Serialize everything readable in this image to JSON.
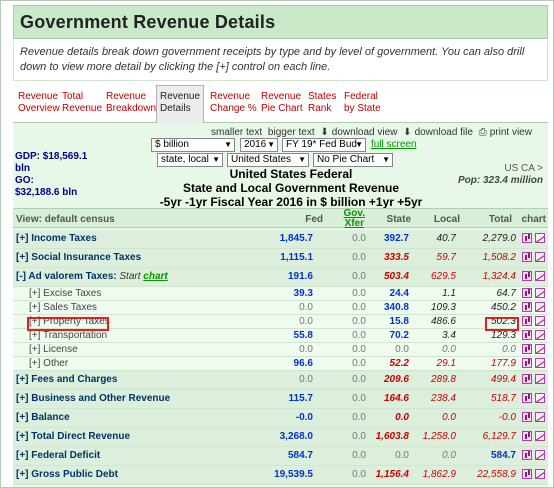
{
  "header": {
    "title": "Government Revenue Details"
  },
  "intro": {
    "text": "Revenue details break down government receipts by type and by level of government. You can also drill down to view more detail by clicking the [+] control on each line."
  },
  "tabs": [
    {
      "label1": "Revenue",
      "label2": "Overview"
    },
    {
      "label1": "Total",
      "label2": "Revenue"
    },
    {
      "label1": "Revenue",
      "label2": "Breakdown"
    },
    {
      "label1": "Revenue",
      "label2": "Details"
    },
    {
      "label1": "Revenue",
      "label2": "Change %"
    },
    {
      "label1": "Revenue",
      "label2": "Pie Chart"
    },
    {
      "label1": "States",
      "label2": "Rank"
    },
    {
      "label1": "Federal",
      "label2": "by State"
    }
  ],
  "toolbar": {
    "smaller_text": "smaller text",
    "bigger_text": "bigger text",
    "download_view": "download view",
    "download_file": "download file",
    "print_view": "print view",
    "full_screen": "full screen"
  },
  "selects": {
    "unit": "$ billion",
    "year": "2016",
    "budget": "FY 19* Fed Bud",
    "level": "state, local",
    "region": "United States",
    "pie": "No Pie Chart"
  },
  "gdp": {
    "gdp_label": "GDP: $18,569.1",
    "gdp_unit": "bln",
    "go_label": "GO:",
    "go_value": "$32,188.6 bln"
  },
  "usca": {
    "label": "US CA >",
    "pop": "Pop: 323.4 million"
  },
  "center": {
    "line1": "United States Federal",
    "line2": "State and Local Government Revenue",
    "line3": "-5yr -1yr  Fiscal Year 2016 in $ billion  +1yr +5yr"
  },
  "columns": {
    "view": "View: default census",
    "fed": "Fed",
    "xfer1": "Gov.",
    "xfer2": "Xfer",
    "state": "State",
    "local": "Local",
    "total": "Total",
    "chart": "chart"
  },
  "rows": [
    {
      "label": "[+] Income Taxes",
      "fed": "1,845.7",
      "xfer": "0.0",
      "state": "392.7",
      "local": "40.7",
      "total": "2,279.0"
    },
    {
      "label": "[+] Social Insurance Taxes",
      "fed": "1,115.1",
      "xfer": "0.0",
      "state": "333.5",
      "local": "59.7",
      "total": "1,508.2"
    },
    {
      "label": "[-] Ad valorem Taxes:",
      "start": "Start",
      "chart_link": "chart",
      "fed": "191.6",
      "xfer": "0.0",
      "state": "503.4",
      "local": "629.5",
      "total": "1,324.4"
    },
    {
      "label": "[+] Excise Taxes",
      "fed": "39.3",
      "xfer": "0.0",
      "state": "24.4",
      "local": "1.1",
      "total": "64.7"
    },
    {
      "label": "[+] Sales Taxes",
      "fed": "0.0",
      "xfer": "0.0",
      "state": "340.8",
      "local": "109.3",
      "total": "450.2"
    },
    {
      "label": "[+] Property Taxes",
      "fed": "0.0",
      "xfer": "0.0",
      "state": "15.8",
      "local": "486.6",
      "total": "502.3"
    },
    {
      "label": "[+] Transportation",
      "fed": "55.8",
      "xfer": "0.0",
      "state": "70.2",
      "local": "3.4",
      "total": "129.3"
    },
    {
      "label": "[+] License",
      "fed": "0.0",
      "xfer": "0.0",
      "state": "0.0",
      "local": "0.0",
      "total": "0.0"
    },
    {
      "label": "[+] Other",
      "fed": "96.6",
      "xfer": "0.0",
      "state": "52.2",
      "local": "29.1",
      "total": "177.9"
    },
    {
      "label": "[+] Fees and Charges",
      "fed": "0.0",
      "xfer": "0.0",
      "state": "209.6",
      "local": "289.8",
      "total": "499.4"
    },
    {
      "label": "[+] Business and Other Revenue",
      "fed": "115.7",
      "xfer": "0.0",
      "state": "164.6",
      "local": "238.4",
      "total": "518.7"
    },
    {
      "label": "[+] Balance",
      "fed": "-0.0",
      "xfer": "0.0",
      "state": "0.0",
      "local": "0.0",
      "total": "-0.0"
    },
    {
      "label": "[+] Total Direct Revenue",
      "fed": "3,268.0",
      "xfer": "0.0",
      "state": "1,603.8",
      "local": "1,258.0",
      "total": "6,129.7"
    },
    {
      "label": "[+] Federal Deficit",
      "fed": "584.7",
      "xfer": "0.0",
      "state": "0.0",
      "local": "0.0",
      "total": "584.7"
    },
    {
      "label": "[+] Gross Public Debt",
      "fed": "19,539.5",
      "xfer": "0.0",
      "state": "1,156.4",
      "local": "1,862.9",
      "total": "22,558.9"
    }
  ],
  "colors": {
    "header_bg": "#c9e9c9",
    "tab_red": "#c00000",
    "fed_blue": "#0033cc",
    "state_red": "#cc0000",
    "highlight": "#e02020"
  }
}
